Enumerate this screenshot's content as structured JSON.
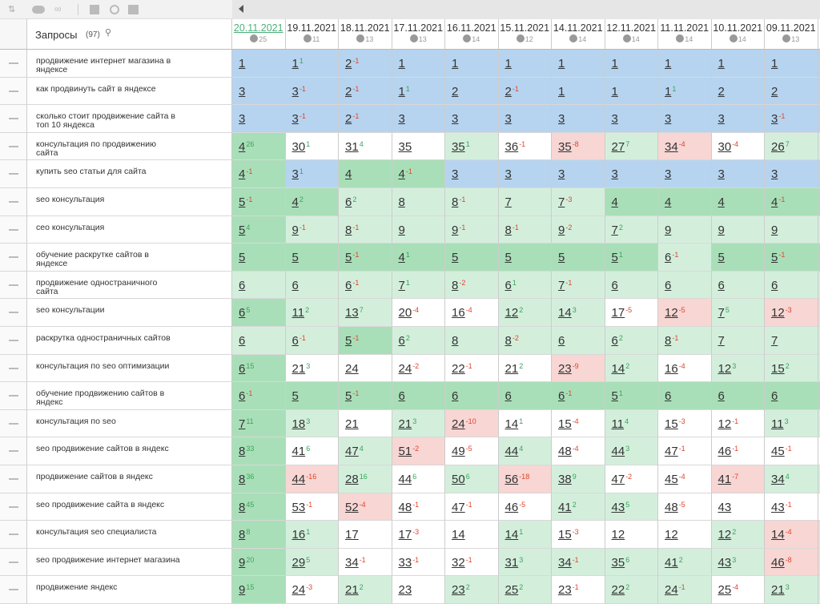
{
  "header": {
    "title": "Запросы",
    "count": "(97)"
  },
  "columns": [
    {
      "date": "20.11.2021",
      "count": 25
    },
    {
      "date": "19.11.2021",
      "count": 11
    },
    {
      "date": "18.11.2021",
      "count": 13
    },
    {
      "date": "17.11.2021",
      "count": 13
    },
    {
      "date": "16.11.2021",
      "count": 14
    },
    {
      "date": "15.11.2021",
      "count": 12
    },
    {
      "date": "14.11.2021",
      "count": 14
    },
    {
      "date": "12.11.2021",
      "count": 14
    },
    {
      "date": "11.11.2021",
      "count": 14
    },
    {
      "date": "10.11.2021",
      "count": 14
    },
    {
      "date": "09.11.2021",
      "count": 13
    }
  ],
  "cell_colors": {
    "B": "#b6d4ef",
    "G": "#a9dfb8",
    "L": "#d3efdc",
    "W": "#ffffff",
    "R": "#f7d6d4"
  },
  "rows": [
    {
      "query": "продвижение интернет магазина в яндексе",
      "positions": [
        1,
        1,
        2,
        1,
        1,
        1,
        1,
        1,
        1,
        1,
        1
      ],
      "deltas": [
        null,
        1,
        -1,
        null,
        null,
        null,
        null,
        null,
        null,
        null,
        null
      ],
      "bg": "BBBBBBBBBBB"
    },
    {
      "query": "как продвинуть сайт в яндексе",
      "positions": [
        3,
        3,
        2,
        1,
        2,
        2,
        1,
        1,
        1,
        2,
        2
      ],
      "deltas": [
        null,
        -1,
        -1,
        1,
        null,
        -1,
        null,
        null,
        1,
        null,
        null
      ],
      "bg": "BBBBBBBBBBB"
    },
    {
      "query": "сколько стоит продвижение сайта в топ 10 яндекса",
      "positions": [
        3,
        3,
        2,
        3,
        3,
        3,
        3,
        3,
        3,
        3,
        3
      ],
      "deltas": [
        null,
        -1,
        -1,
        null,
        null,
        null,
        null,
        null,
        null,
        null,
        -1
      ],
      "bg": "BBBBBBBBBBB"
    },
    {
      "query": "консультация по продвижению сайта",
      "positions": [
        4,
        30,
        31,
        35,
        35,
        36,
        35,
        27,
        34,
        30,
        26
      ],
      "deltas": [
        26,
        1,
        4,
        null,
        1,
        -1,
        -8,
        7,
        -4,
        -4,
        7
      ],
      "bg": "GWWWLWRLRWL"
    },
    {
      "query": "купить seo статьи для сайта",
      "positions": [
        4,
        3,
        4,
        4,
        3,
        3,
        3,
        3,
        3,
        3,
        3
      ],
      "deltas": [
        -1,
        1,
        null,
        -1,
        null,
        null,
        null,
        null,
        null,
        null,
        null
      ],
      "bg": "GBGGBBBBBBB"
    },
    {
      "query": "seo консультация",
      "positions": [
        5,
        4,
        6,
        8,
        8,
        7,
        7,
        4,
        4,
        4,
        4
      ],
      "deltas": [
        -1,
        2,
        2,
        null,
        -1,
        null,
        -3,
        null,
        null,
        null,
        -1
      ],
      "bg": "GGLLLLLGGGG"
    },
    {
      "query": "сео консультация",
      "positions": [
        5,
        9,
        8,
        9,
        9,
        8,
        9,
        7,
        9,
        9,
        9
      ],
      "deltas": [
        4,
        -1,
        -1,
        null,
        -1,
        -1,
        -2,
        2,
        null,
        null,
        null
      ],
      "bg": "GLLLLLLLLLL"
    },
    {
      "query": "обучение раскрутке сайтов в яндексе",
      "positions": [
        5,
        5,
        5,
        4,
        5,
        5,
        5,
        5,
        6,
        5,
        5
      ],
      "deltas": [
        null,
        null,
        -1,
        1,
        null,
        null,
        null,
        1,
        -1,
        null,
        -1
      ],
      "bg": "GGGGGGGGLGG"
    },
    {
      "query": "продвижение одностраничного сайта",
      "positions": [
        6,
        6,
        6,
        7,
        8,
        6,
        7,
        6,
        6,
        6,
        6
      ],
      "deltas": [
        null,
        null,
        -1,
        1,
        -2,
        1,
        -1,
        null,
        null,
        null,
        null
      ],
      "bg": "LLLLLLLLLLL"
    },
    {
      "query": "seo консультации",
      "positions": [
        6,
        11,
        13,
        20,
        16,
        12,
        14,
        17,
        12,
        7,
        12
      ],
      "deltas": [
        5,
        2,
        7,
        -4,
        -4,
        2,
        3,
        -5,
        -5,
        5,
        -3
      ],
      "bg": "GLLWWLLWRLR"
    },
    {
      "query": "раскрутка одностраничных сайтов",
      "positions": [
        6,
        6,
        5,
        6,
        8,
        8,
        6,
        6,
        8,
        7,
        7
      ],
      "deltas": [
        null,
        -1,
        -1,
        2,
        null,
        -2,
        null,
        2,
        -1,
        null,
        null
      ],
      "bg": "LLGLLLLLLLL"
    },
    {
      "query": "консультация по seo оптимизации",
      "positions": [
        6,
        21,
        24,
        24,
        22,
        21,
        23,
        14,
        16,
        12,
        15
      ],
      "deltas": [
        15,
        3,
        null,
        -2,
        -1,
        2,
        -9,
        2,
        -4,
        3,
        2
      ],
      "bg": "GWWWWWRLWLL"
    },
    {
      "query": "обучение продвижению сайтов в яндекс",
      "positions": [
        6,
        5,
        5,
        6,
        6,
        6,
        6,
        5,
        6,
        6,
        6
      ],
      "deltas": [
        -1,
        null,
        -1,
        null,
        null,
        null,
        -1,
        1,
        null,
        null,
        null
      ],
      "bg": "GGGGGGGGGGG"
    },
    {
      "query": "консультация по seo",
      "positions": [
        7,
        18,
        21,
        21,
        24,
        14,
        15,
        11,
        15,
        12,
        11
      ],
      "deltas": [
        11,
        3,
        null,
        3,
        -10,
        1,
        -4,
        4,
        -3,
        -1,
        3
      ],
      "bg": "GLWLRWWLWWL"
    },
    {
      "query": "seo продвижение сайтов в яндекс",
      "positions": [
        8,
        41,
        47,
        51,
        49,
        44,
        48,
        44,
        47,
        46,
        45
      ],
      "deltas": [
        33,
        6,
        4,
        -2,
        -5,
        4,
        -4,
        3,
        -1,
        -1,
        -1
      ],
      "bg": "GWLRWLWLWWW"
    },
    {
      "query": "продвижение сайтов в яндекс",
      "positions": [
        8,
        44,
        28,
        44,
        50,
        56,
        38,
        47,
        45,
        41,
        34
      ],
      "deltas": [
        36,
        -16,
        16,
        6,
        6,
        -18,
        9,
        -2,
        -4,
        -7,
        4
      ],
      "bg": "GRLWLRLWWRL"
    },
    {
      "query": "seo продвижение сайта в яндекс",
      "positions": [
        8,
        53,
        52,
        48,
        47,
        46,
        41,
        43,
        48,
        43,
        43
      ],
      "deltas": [
        45,
        -1,
        -4,
        -1,
        -1,
        -5,
        2,
        5,
        -5,
        null,
        -1
      ],
      "bg": "GWRWWWLLWWW"
    },
    {
      "query": "консультация seo специалиста",
      "positions": [
        8,
        16,
        17,
        17,
        14,
        14,
        15,
        12,
        12,
        12,
        14
      ],
      "deltas": [
        8,
        1,
        null,
        -3,
        null,
        1,
        -3,
        null,
        null,
        2,
        -4
      ],
      "bg": "GLWWWLWWWLR"
    },
    {
      "query": "seo продвижение интернет магазина",
      "positions": [
        9,
        29,
        34,
        33,
        32,
        31,
        34,
        35,
        41,
        43,
        46
      ],
      "deltas": [
        20,
        5,
        -1,
        -1,
        -1,
        3,
        -1,
        6,
        2,
        3,
        -8
      ],
      "bg": "GLWWWLLLLLR"
    },
    {
      "query": "продвижение яндекс",
      "positions": [
        9,
        24,
        21,
        23,
        23,
        25,
        23,
        22,
        24,
        25,
        21
      ],
      "deltas": [
        15,
        -3,
        2,
        null,
        2,
        2,
        -1,
        2,
        -1,
        -4,
        3
      ],
      "bg": "GWLWLLWLLWL"
    }
  ]
}
